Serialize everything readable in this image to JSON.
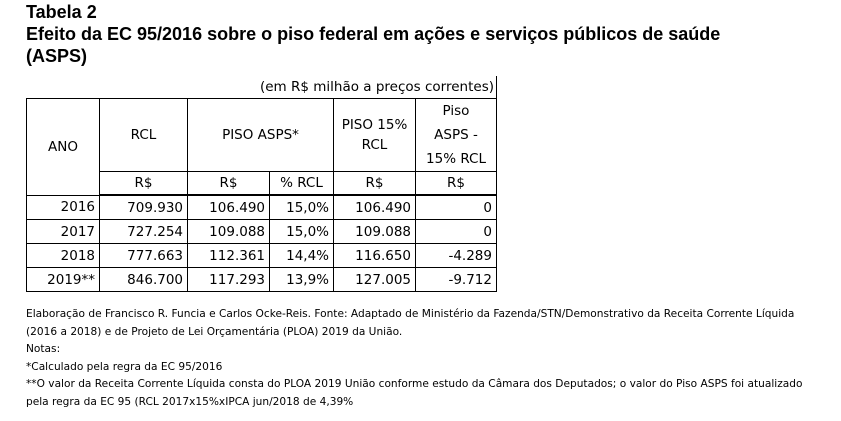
{
  "title": {
    "line1": "Tabela 2",
    "line2": "Efeito da EC 95/2016 sobre o piso federal em ações e serviços públicos de saúde",
    "line3": "(ASPS)"
  },
  "table": {
    "unit_caption": "(em R$ milhão a preços correntes)",
    "headers": {
      "ano": "ANO",
      "rcl": "RCL",
      "piso_asps": "PISO ASPS*",
      "piso15_line1": "PISO 15%",
      "piso15_line2": "RCL",
      "diff_line1": "Piso",
      "diff_line2": "ASPS -",
      "diff_line3": "15% RCL"
    },
    "units": [
      "R$",
      "R$",
      "% RCL",
      "R$",
      "R$"
    ],
    "rows": [
      {
        "ano": "2016",
        "rcl": "709.930",
        "piso": "106.490",
        "pct": "15,0%",
        "piso15": "106.490",
        "diff": "0"
      },
      {
        "ano": "2017",
        "rcl": "727.254",
        "piso": "109.088",
        "pct": "15,0%",
        "piso15": "109.088",
        "diff": "0"
      },
      {
        "ano": "2018",
        "rcl": "777.663",
        "piso": "112.361",
        "pct": "14,4%",
        "piso15": "116.650",
        "diff": "-4.289"
      },
      {
        "ano": "2019**",
        "rcl": "846.700",
        "piso": "117.293",
        "pct": "13,9%",
        "piso15": "127.005",
        "diff": "-9.712"
      }
    ]
  },
  "notes": {
    "source": "Elaboração de Francisco R. Funcia e Carlos Ocke-Reis. Fonte: Adaptado de Ministério da Fazenda/STN/Demonstrativo da Receita Corrente Líquida (2016 a 2018) e de Projeto de Lei Orçamentária (PLOA) 2019 da União.",
    "notas_label": "Notas:",
    "note1": "*Calculado pela regra da EC 95/2016",
    "note2": "**O valor da Receita Corrente Líquida consta do PLOA 2019 União conforme estudo da Câmara dos Deputados; o valor do Piso ASPS foi atualizado pela regra da EC 95 (RCL 2017x15%xIPCA jun/2018 de 4,39%"
  }
}
